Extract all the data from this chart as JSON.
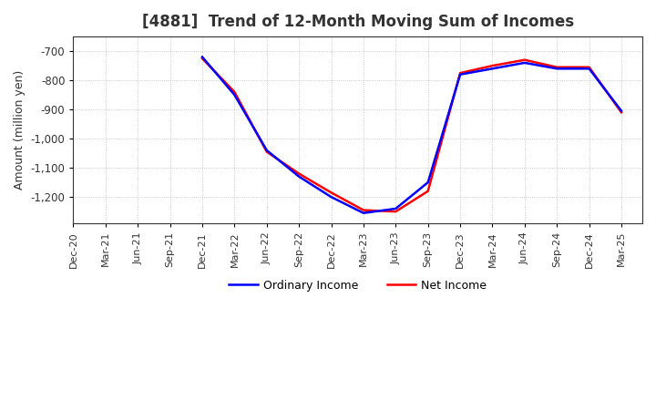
{
  "title": "[4881]  Trend of 12-Month Moving Sum of Incomes",
  "ylabel": "Amount (million yen)",
  "ylim": [
    -1290,
    -650
  ],
  "yticks": [
    -700,
    -800,
    -900,
    -1000,
    -1100,
    -1200
  ],
  "ytick_labels": [
    "-700",
    "-800",
    "-900",
    "-1,000",
    "-1,100",
    "-1,200"
  ],
  "background_color": "#ffffff",
  "plot_bg_color": "#ffffff",
  "grid_color": "#bbbbbb",
  "ordinary_income_color": "#0000ff",
  "net_income_color": "#ff0000",
  "ordinary_income_label": "Ordinary Income",
  "net_income_label": "Net Income",
  "x_labels": [
    "Dec-20",
    "Mar-21",
    "Jun-21",
    "Sep-21",
    "Dec-21",
    "Mar-22",
    "Jun-22",
    "Sep-22",
    "Dec-22",
    "Mar-23",
    "Jun-23",
    "Sep-23",
    "Dec-23",
    "Mar-24",
    "Jun-24",
    "Sep-24",
    "Dec-24",
    "Mar-25"
  ],
  "ordinary_income": [
    null,
    null,
    null,
    null,
    -720,
    -850,
    -1040,
    -1130,
    -1200,
    -1255,
    -1240,
    -1150,
    -780,
    -760,
    -740,
    -760,
    -760,
    -905
  ],
  "net_income": [
    null,
    null,
    null,
    null,
    -725,
    -840,
    -1045,
    -1120,
    -1185,
    -1245,
    -1250,
    -1180,
    -775,
    -750,
    -730,
    -755,
    -755,
    -910
  ]
}
